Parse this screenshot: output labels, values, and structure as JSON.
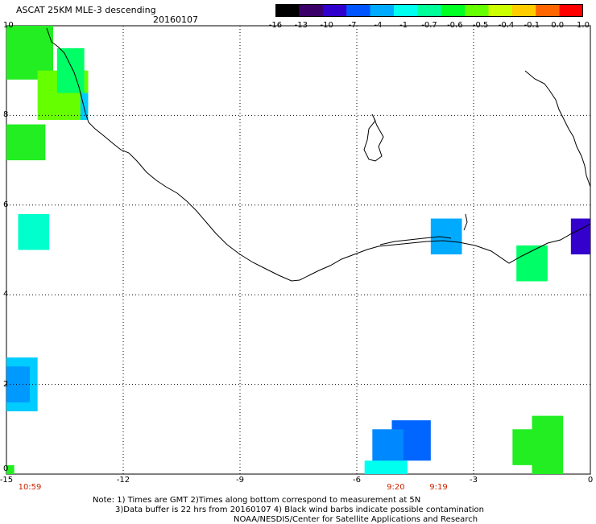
{
  "header": {
    "title": "ASCAT 25KM MLE-3 descending",
    "date": "20160107"
  },
  "colorbar": {
    "labels": [
      "-16",
      "-13",
      "-10",
      "-7",
      "-4",
      "-1",
      "-0.7",
      "-0.6",
      "-0.5",
      "-0.4",
      "-0.1",
      "0.0",
      "1.0"
    ],
    "colors": [
      "#000000",
      "#3a0068",
      "#3000cc",
      "#0055ff",
      "#00aaff",
      "#00ffee",
      "#00ff99",
      "#00ff22",
      "#66ff00",
      "#ccff00",
      "#ffcc00",
      "#ff6600",
      "#ff0000"
    ]
  },
  "axes": {
    "x_ticks": [
      "-15",
      "-12",
      "-9",
      "-6",
      "-3",
      "0"
    ],
    "y_ticks": [
      "10",
      "8",
      "6",
      "4",
      "2",
      "0"
    ],
    "lon_range": [
      -15,
      0
    ],
    "lat_range": [
      0,
      10
    ],
    "grid": "dotted"
  },
  "time_labels": [
    {
      "text": "10:59",
      "lon": -14.4
    },
    {
      "text": "9:20",
      "lon": -5.0
    },
    {
      "text": "9:19",
      "lon": -3.9
    }
  ],
  "cells": [
    {
      "lon": [
        -15.0,
        -13.8
      ],
      "lat": [
        8.8,
        10.0
      ],
      "color": "#22ee22"
    },
    {
      "lon": [
        -14.2,
        -12.9
      ],
      "lat": [
        7.9,
        9.0
      ],
      "color": "#66ff00"
    },
    {
      "lon": [
        -13.7,
        -13.0
      ],
      "lat": [
        8.5,
        9.5
      ],
      "color": "#00ff66"
    },
    {
      "lon": [
        -13.1,
        -12.9
      ],
      "lat": [
        7.9,
        8.5
      ],
      "color": "#00ccff"
    },
    {
      "lon": [
        -15.0,
        -14.0
      ],
      "lat": [
        7.0,
        7.8
      ],
      "color": "#22ee22"
    },
    {
      "lon": [
        -14.7,
        -13.9
      ],
      "lat": [
        5.0,
        5.8
      ],
      "color": "#00ffcc"
    },
    {
      "lon": [
        -15.0,
        -14.2
      ],
      "lat": [
        1.4,
        2.6
      ],
      "color": "#00ccff"
    },
    {
      "lon": [
        -15.0,
        -14.4
      ],
      "lat": [
        1.6,
        2.4
      ],
      "color": "#0099ff"
    },
    {
      "lon": [
        -15.0,
        -14.8
      ],
      "lat": [
        0.0,
        0.2
      ],
      "color": "#22ee22"
    },
    {
      "lon": [
        -4.1,
        -3.3
      ],
      "lat": [
        4.9,
        5.7
      ],
      "color": "#00aaff"
    },
    {
      "lon": [
        -1.9,
        -1.1
      ],
      "lat": [
        4.3,
        5.1
      ],
      "color": "#00ff66"
    },
    {
      "lon": [
        -0.5,
        0.0
      ],
      "lat": [
        4.9,
        5.7
      ],
      "color": "#3300cc"
    },
    {
      "lon": [
        -5.1,
        -4.1
      ],
      "lat": [
        0.3,
        1.2
      ],
      "color": "#0066ff"
    },
    {
      "lon": [
        -5.6,
        -4.8
      ],
      "lat": [
        0.2,
        1.0
      ],
      "color": "#0088ff"
    },
    {
      "lon": [
        -5.8,
        -4.7
      ],
      "lat": [
        0.0,
        0.3
      ],
      "color": "#00ffee"
    },
    {
      "lon": [
        -1.5,
        -0.7
      ],
      "lat": [
        0.0,
        1.3
      ],
      "color": "#22ee22"
    },
    {
      "lon": [
        -2.0,
        -1.2
      ],
      "lat": [
        0.2,
        1.0
      ],
      "color": "#22ee22"
    }
  ],
  "notes": [
    "Note: 1) Times are GMT 2)Times along bottom correspond to measurement at 5N",
    "3)Data buffer is 22 hrs from 20160107 4) Black wind barbs indicate possible contamination",
    "NOAA/NESDIS/Center for Satellite Applications and Research"
  ]
}
